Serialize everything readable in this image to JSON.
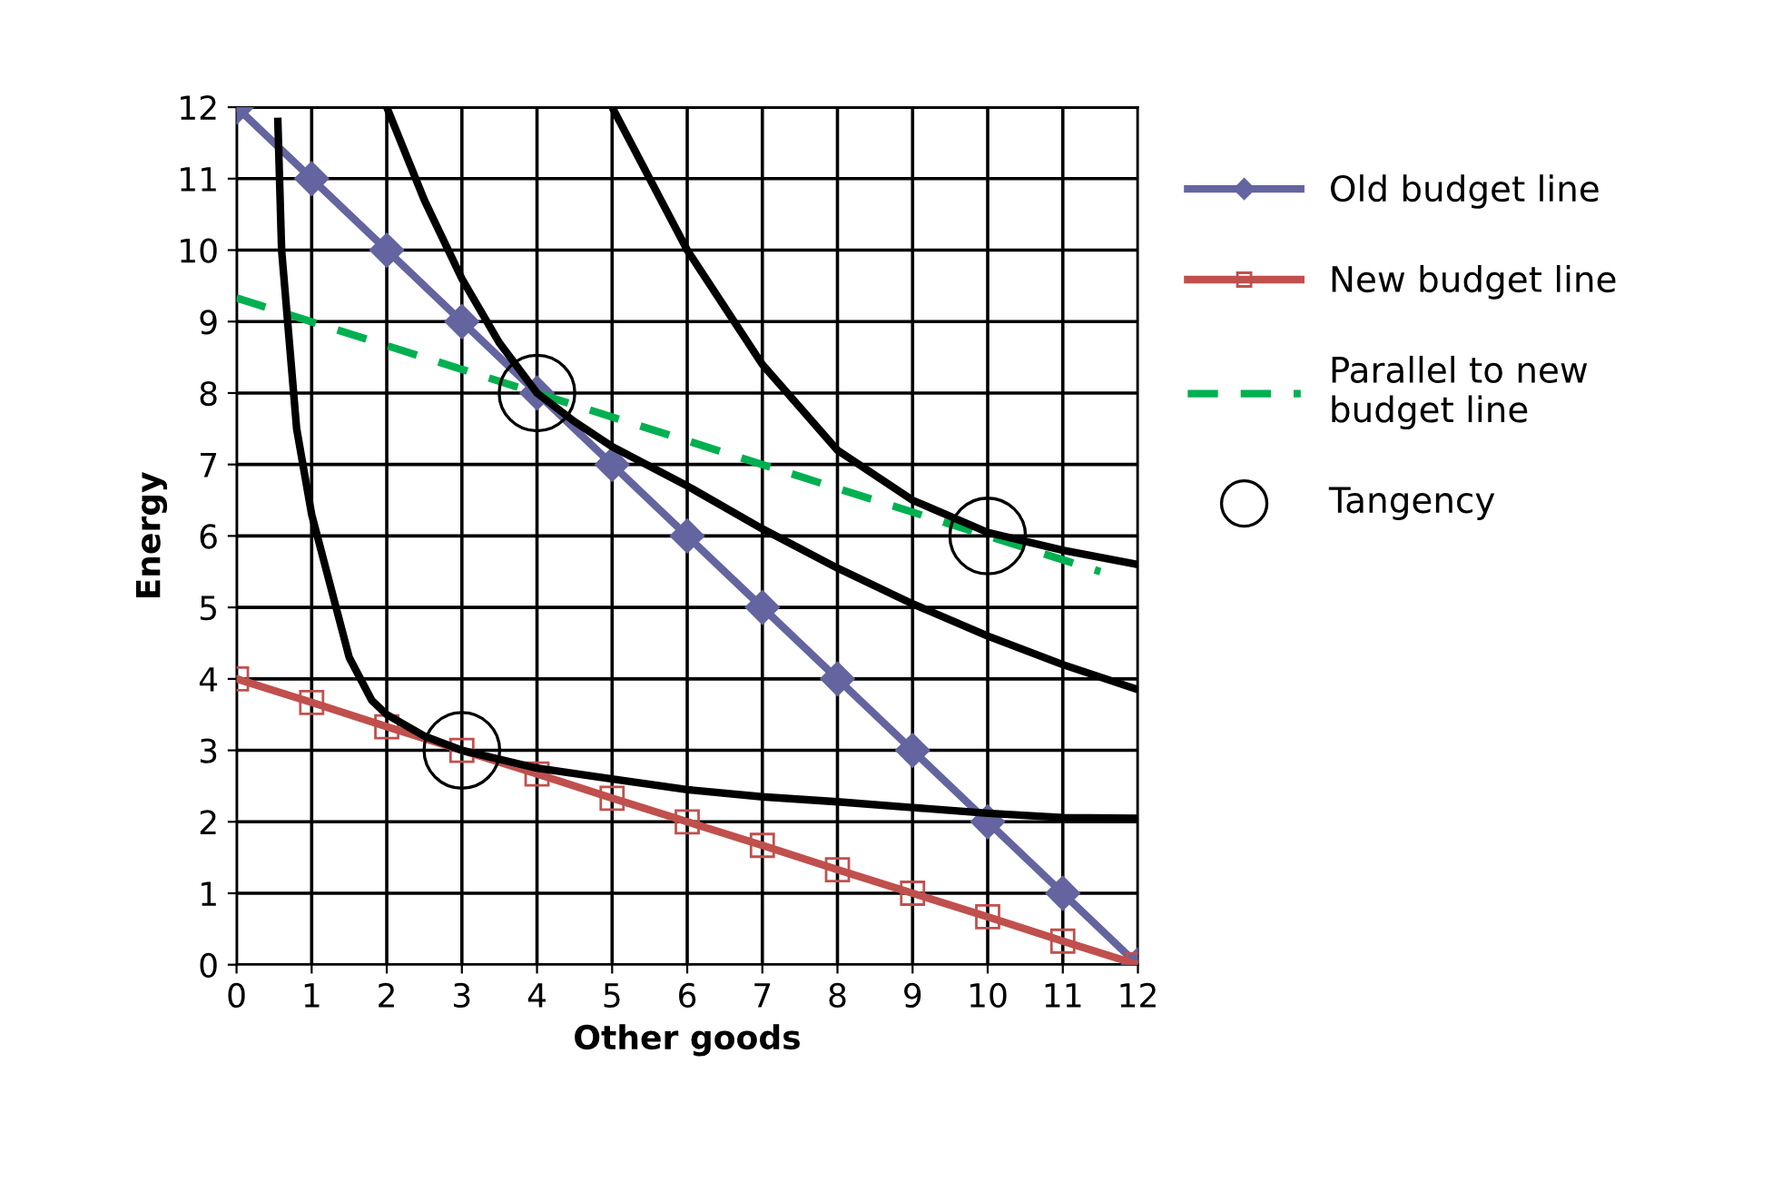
{
  "chart_data": {
    "type": "line",
    "xlabel": "Other goods",
    "ylabel": "Energy",
    "xlim": [
      0,
      12
    ],
    "ylim": [
      0,
      12
    ],
    "xticks": [
      0,
      1,
      2,
      3,
      4,
      5,
      6,
      7,
      8,
      9,
      10,
      11,
      12
    ],
    "yticks": [
      0,
      1,
      2,
      3,
      4,
      5,
      6,
      7,
      8,
      9,
      10,
      11,
      12
    ],
    "grid": true,
    "legend": "right",
    "series": [
      {
        "name": "Old budget line",
        "color": "#6464a0",
        "marker": "diamond",
        "line_style": "solid",
        "x": [
          0,
          1,
          2,
          3,
          4,
          5,
          6,
          7,
          8,
          9,
          10,
          11,
          12
        ],
        "values": [
          12,
          11,
          10,
          9,
          8,
          7,
          6,
          5,
          4,
          3,
          2,
          1,
          0
        ]
      },
      {
        "name": "New budget line",
        "color": "#c0504d",
        "marker": "square",
        "line_style": "solid",
        "x": [
          0,
          1,
          2,
          3,
          4,
          5,
          6,
          7,
          8,
          9,
          10,
          11,
          12
        ],
        "values": [
          4,
          3.67,
          3.33,
          3,
          2.67,
          2.33,
          2,
          1.67,
          1.33,
          1,
          0.67,
          0.33,
          0
        ]
      },
      {
        "name": "Parallel to new budget line",
        "color": "#00b050",
        "marker": "none",
        "line_style": "dashed",
        "x": [
          0,
          11.5
        ],
        "values": [
          9.33,
          5.5
        ]
      },
      {
        "name": "Tangency",
        "type": "scatter",
        "color": "#000000",
        "marker": "circle",
        "x": [
          3,
          4,
          10
        ],
        "values": [
          3,
          8,
          6
        ]
      },
      {
        "color": "#000000",
        "marker": "none",
        "line_style": "solid",
        "x": [
          0.55,
          0.6,
          0.8,
          1,
          1.2,
          1.5,
          1.8,
          2,
          2.5,
          3,
          4,
          5,
          6,
          7,
          8,
          9,
          10,
          11,
          12
        ],
        "values": [
          11.8,
          10,
          7.5,
          6.3,
          5.5,
          4.3,
          3.7,
          3.5,
          3.2,
          3.0,
          2.75,
          2.6,
          2.45,
          2.35,
          2.28,
          2.2,
          2.12,
          2.06,
          2.05
        ]
      },
      {
        "color": "#000000",
        "marker": "none",
        "line_style": "solid",
        "x": [
          2,
          2.5,
          3,
          3.5,
          4,
          4.5,
          5,
          6,
          7,
          8,
          9,
          10,
          11,
          12
        ],
        "values": [
          12,
          10.7,
          9.6,
          8.7,
          8,
          7.6,
          7.25,
          6.7,
          6.1,
          5.55,
          5.05,
          4.6,
          4.2,
          3.85
        ]
      },
      {
        "color": "#000000",
        "marker": "none",
        "line_style": "solid",
        "x": [
          5,
          6,
          7,
          8,
          9,
          10,
          11,
          12
        ],
        "values": [
          12,
          10,
          8.4,
          7.2,
          6.5,
          6.05,
          5.8,
          5.6
        ]
      }
    ]
  }
}
